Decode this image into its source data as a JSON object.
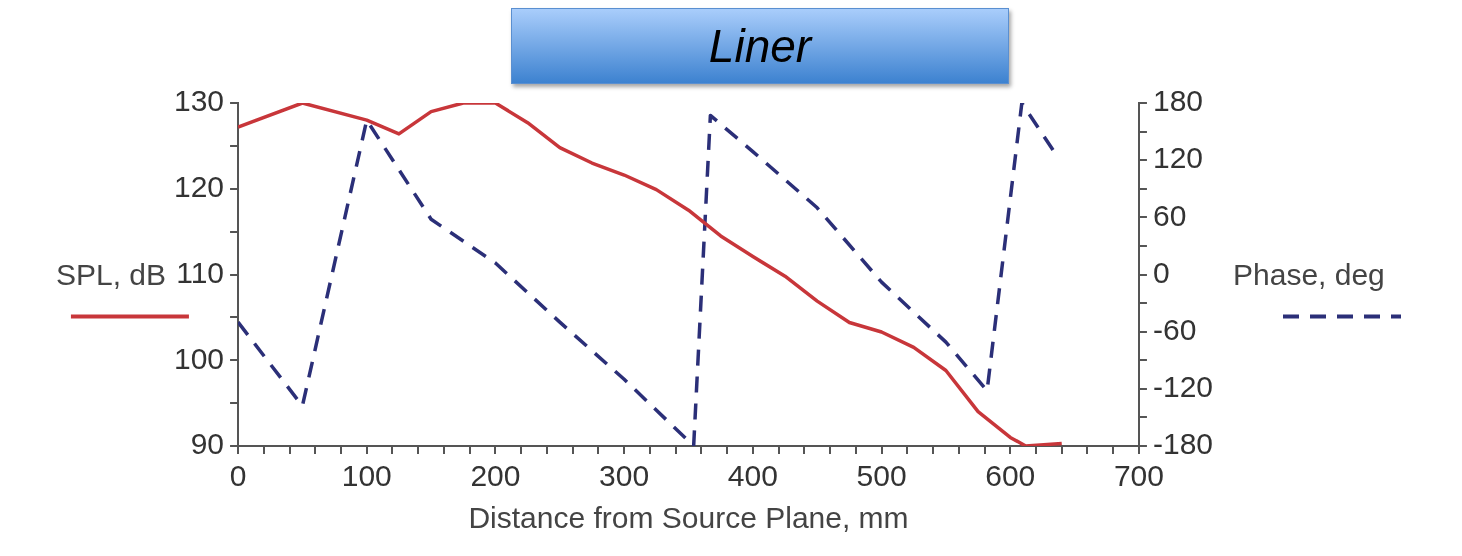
{
  "chart_data": {
    "type": "line",
    "title": "Liner",
    "xlabel": "Distance from Source Plane, mm",
    "ylabel": "SPL, dB",
    "y2label": "Phase, deg",
    "xlim": [
      0,
      700
    ],
    "xticks": [
      0,
      {
        "value": 20,
        "label": null
      },
      {
        "value": 40,
        "label": null
      },
      {
        "value": 60,
        "label": null
      },
      {
        "value": 80,
        "label": null
      },
      100,
      {
        "value": 120,
        "label": null
      },
      {
        "value": 140,
        "label": null
      },
      {
        "value": 160,
        "label": null
      },
      {
        "value": 180,
        "label": null
      },
      200,
      {
        "value": 220,
        "label": null
      },
      {
        "value": 240,
        "label": null
      },
      {
        "value": 260,
        "label": null
      },
      {
        "value": 280,
        "label": null
      },
      300,
      {
        "value": 320,
        "label": null
      },
      {
        "value": 340,
        "label": null
      },
      {
        "value": 360,
        "label": null
      },
      {
        "value": 380,
        "label": null
      },
      400,
      {
        "value": 420,
        "label": null
      },
      {
        "value": 440,
        "label": null
      },
      {
        "value": 460,
        "label": null
      },
      {
        "value": 480,
        "label": null
      },
      500,
      {
        "value": 520,
        "label": null
      },
      {
        "value": 540,
        "label": null
      },
      {
        "value": 560,
        "label": null
      },
      {
        "value": 580,
        "label": null
      },
      600,
      {
        "value": 620,
        "label": null
      },
      {
        "value": 640,
        "label": null
      },
      {
        "value": 660,
        "label": null
      },
      {
        "value": 680,
        "label": null
      },
      700
    ],
    "ylim": [
      90,
      130
    ],
    "yticks": [
      90,
      {
        "value": 95,
        "label": null
      },
      100,
      {
        "value": 105,
        "label": null
      },
      110,
      {
        "value": 115,
        "label": null
      },
      120,
      {
        "value": 125,
        "label": null
      },
      130
    ],
    "y2lim": [
      -180,
      180
    ],
    "y2ticks": [
      -180,
      {
        "value": -150,
        "label": null
      },
      -120,
      {
        "value": -90,
        "label": null
      },
      -60,
      {
        "value": -30,
        "label": null
      },
      0,
      {
        "value": 30,
        "label": null
      },
      60,
      {
        "value": 90,
        "label": null
      },
      120,
      {
        "value": 150,
        "label": null
      },
      180
    ],
    "series": [
      {
        "color": "#c8363a",
        "line_style": "solid",
        "x": [
          0,
          50,
          100,
          125,
          150,
          175,
          200,
          225,
          250,
          275,
          300,
          325,
          350,
          375,
          400,
          425,
          450,
          475,
          500,
          525,
          550,
          575,
          600,
          612,
          640
        ],
        "values": [
          127.2,
          130,
          128,
          126.4,
          129,
          130,
          130,
          127.7,
          124.8,
          123,
          121.6,
          119.9,
          117.5,
          114.5,
          112.1,
          109.8,
          106.9,
          104.4,
          103.3,
          101.5,
          98.8,
          94,
          91,
          90,
          90.3
        ]
      },
      {
        "color": "#2b2f78",
        "line_style": "dashed",
        "axis": "y2",
        "x": [
          0,
          50,
          100,
          150,
          200,
          250,
          300,
          354,
          367,
          400,
          450,
          500,
          550,
          582,
          609,
          634
        ],
        "values": [
          -50,
          -138,
          162,
          58,
          12,
          -50,
          -110,
          -180,
          167,
          129,
          70,
          -8,
          -71,
          -122,
          180,
          129
        ]
      }
    ]
  }
}
